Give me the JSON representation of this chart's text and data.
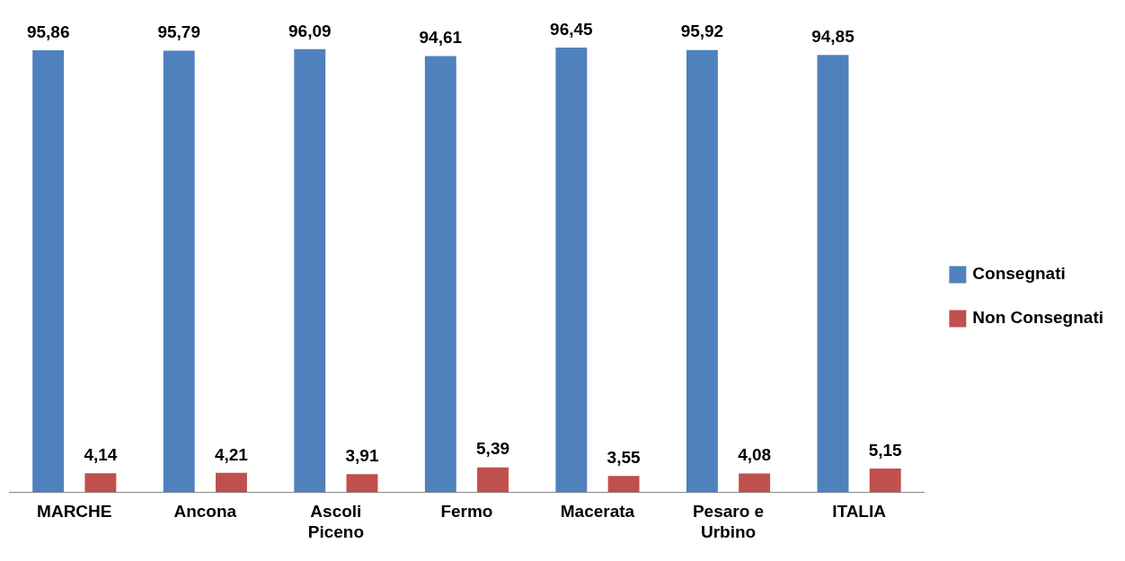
{
  "chart_data": {
    "type": "bar",
    "categories": [
      "MARCHE",
      "Ancona",
      "Ascoli Piceno",
      "Fermo",
      "Macerata",
      "Pesaro e Urbino",
      "ITALIA"
    ],
    "series": [
      {
        "name": "Consegnati",
        "color": "#4f81bd",
        "values": [
          95.86,
          95.79,
          96.09,
          94.61,
          96.45,
          95.92,
          94.85
        ],
        "value_labels": [
          "95,86",
          "95,79",
          "96,09",
          "94,61",
          "96,45",
          "95,92",
          "94,85"
        ]
      },
      {
        "name": "Non Consegnati",
        "color": "#c0504d",
        "values": [
          4.14,
          4.21,
          3.91,
          5.39,
          3.55,
          4.08,
          5.15
        ],
        "value_labels": [
          "4,14",
          "4,21",
          "3,91",
          "5,39",
          "3,55",
          "4,08",
          "5,15"
        ]
      }
    ],
    "legend": "right",
    "grid": false
  }
}
